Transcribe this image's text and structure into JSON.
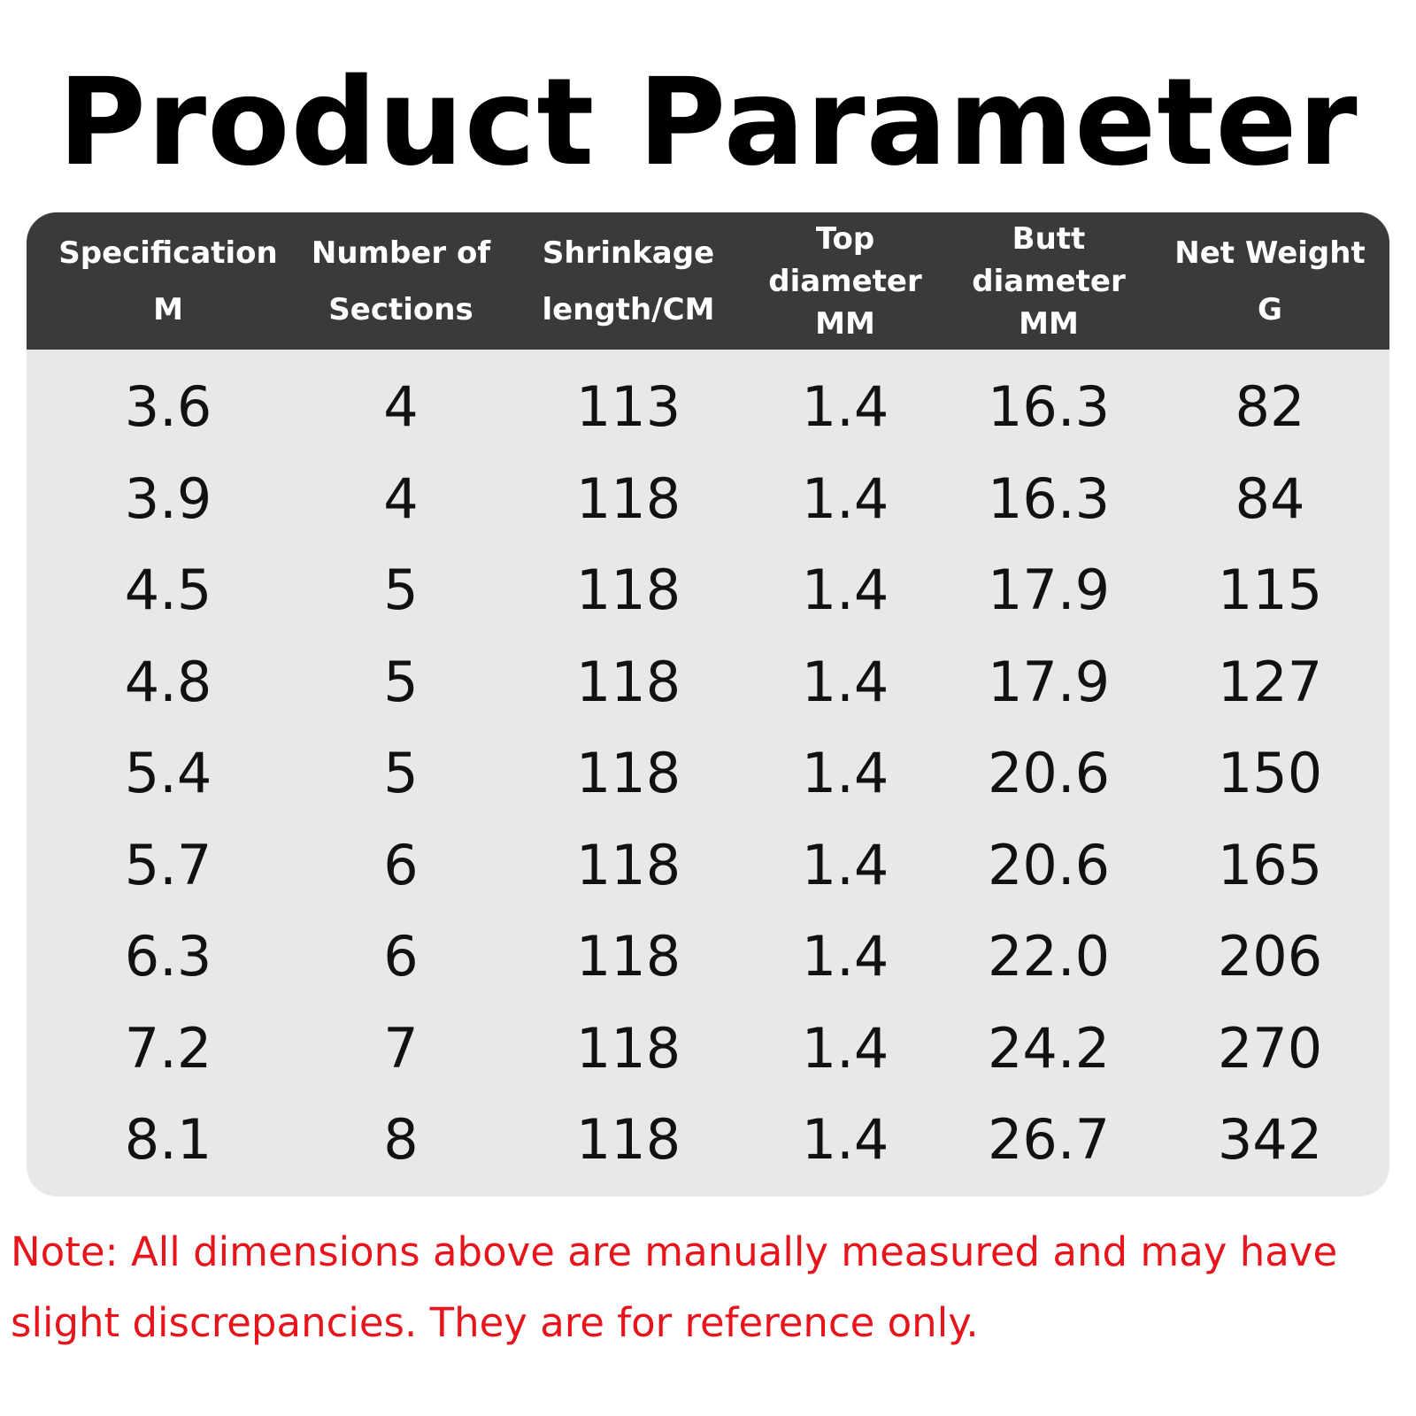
{
  "header": {
    "title": "Product Parameter"
  },
  "table": {
    "columns": [
      [
        "Specification",
        "M"
      ],
      [
        "Number of",
        "Sections"
      ],
      [
        "Shrinkage",
        "length/CM"
      ],
      [
        "Top",
        "diameter",
        "MM"
      ],
      [
        "Butt",
        "diameter",
        "MM"
      ],
      [
        "Net Weight",
        "G"
      ]
    ],
    "rows": [
      [
        "3.6",
        "4",
        "113",
        "1.4",
        "16.3",
        "82"
      ],
      [
        "3.9",
        "4",
        "118",
        "1.4",
        "16.3",
        "84"
      ],
      [
        "4.5",
        "5",
        "118",
        "1.4",
        "17.9",
        "115"
      ],
      [
        "4.8",
        "5",
        "118",
        "1.4",
        "17.9",
        "127"
      ],
      [
        "5.4",
        "5",
        "118",
        "1.4",
        "20.6",
        "150"
      ],
      [
        "5.7",
        "6",
        "118",
        "1.4",
        "20.6",
        "165"
      ],
      [
        "6.3",
        "6",
        "118",
        "1.4",
        "22.0",
        "206"
      ],
      [
        "7.2",
        "7",
        "118",
        "1.4",
        "24.2",
        "270"
      ],
      [
        "8.1",
        "8",
        "118",
        "1.4",
        "26.7",
        "342"
      ]
    ]
  },
  "note": "Note: All dimensions above are manually measured and may have slight discrepancies. They are for reference only."
}
